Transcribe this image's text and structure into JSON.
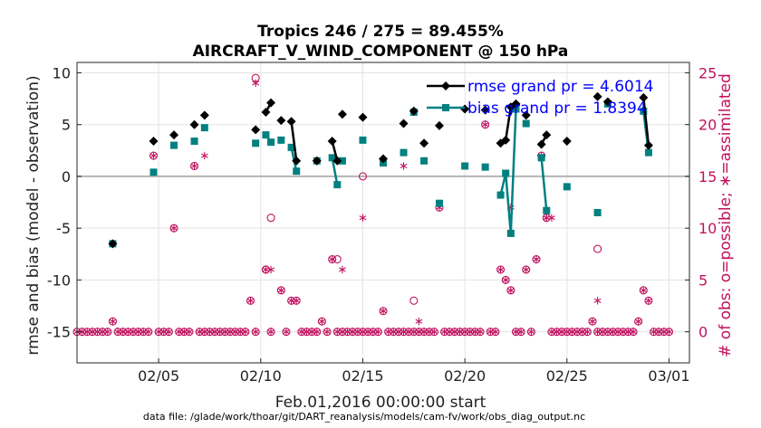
{
  "chart_data": {
    "type": "line",
    "title_line1": "Tropics 246 / 275 = 89.455%",
    "title_line2": "AIRCRAFT_V_WIND_COMPONENT @ 150 hPa",
    "ylabel_left": "rmse and bias (model - observation)",
    "ylabel_right": "# of obs: o=possible; ∗=assimilated",
    "xlabel": "Feb.01,2016 00:00:00 start",
    "footnote": "data file: /glade/work/thoar/git/DART_reanalysis/models/cam-fv/work/obs_diag_output.nc",
    "x_range_days": [
      1,
      31
    ],
    "y_left_range": [
      -18,
      11
    ],
    "y_right_range": [
      -3,
      26
    ],
    "x_ticks": [
      {
        "day": 5,
        "label": "02/05"
      },
      {
        "day": 10,
        "label": "02/10"
      },
      {
        "day": 15,
        "label": "02/15"
      },
      {
        "day": 20,
        "label": "02/20"
      },
      {
        "day": 25,
        "label": "02/25"
      },
      {
        "day": 30,
        "label": "03/01"
      }
    ],
    "y_left_ticks": [
      {
        "v": 10,
        "label": "10"
      },
      {
        "v": 5,
        "label": "5"
      },
      {
        "v": 0,
        "label": "0"
      },
      {
        "v": -5,
        "label": "-5"
      },
      {
        "v": -10,
        "label": "-10"
      },
      {
        "v": -15,
        "label": "-15"
      }
    ],
    "y_right_ticks": [
      {
        "v": 0,
        "label": "0"
      },
      {
        "v": 5,
        "label": "5"
      },
      {
        "v": 10,
        "label": "10"
      },
      {
        "v": 15,
        "label": "15"
      },
      {
        "v": 20,
        "label": "20"
      },
      {
        "v": 25,
        "label": "25"
      }
    ],
    "legend": [
      "rmse grand pr = 4.6014",
      "bias grand pr = 1.8394"
    ],
    "colors": {
      "rmse": "#000000",
      "bias": "#008080",
      "obs": "#c0115f",
      "zero_line": "#b4b4b4",
      "legend_text": "#0000ff"
    },
    "series": [
      {
        "name": "rmse",
        "segments": [
          [
            [
              2.75,
              -6.5
            ]
          ],
          [
            [
              4.75,
              3.4
            ]
          ],
          [
            [
              5.75,
              4.0
            ]
          ],
          [
            [
              6.75,
              5.0
            ]
          ],
          [
            [
              7.25,
              5.9
            ]
          ],
          [
            [
              9.75,
              4.5
            ]
          ],
          [
            [
              10.25,
              6.2
            ],
            [
              10.5,
              7.1
            ]
          ],
          [
            [
              11.0,
              5.4
            ]
          ],
          [
            [
              11.5,
              5.3
            ],
            [
              11.75,
              1.5
            ]
          ],
          [
            [
              12.75,
              1.5
            ]
          ],
          [
            [
              13.5,
              3.4
            ],
            [
              13.75,
              1.5
            ]
          ],
          [
            [
              14.0,
              6.0
            ]
          ],
          [
            [
              15.0,
              5.7
            ]
          ],
          [
            [
              16.0,
              1.7
            ]
          ],
          [
            [
              17.0,
              5.1
            ]
          ],
          [
            [
              17.5,
              6.3
            ]
          ],
          [
            [
              18.0,
              3.2
            ]
          ],
          [
            [
              18.75,
              4.9
            ]
          ],
          [
            [
              20.0,
              6.5
            ]
          ],
          [
            [
              21.0,
              6.4
            ]
          ],
          [
            [
              21.75,
              3.2
            ],
            [
              22.0,
              3.5
            ],
            [
              22.25,
              6.7
            ],
            [
              22.5,
              7.0
            ]
          ],
          [
            [
              23.0,
              5.9
            ]
          ],
          [
            [
              23.75,
              3.1
            ],
            [
              24.0,
              4.0
            ]
          ],
          [
            [
              25.0,
              3.4
            ]
          ],
          [
            [
              26.5,
              7.7
            ]
          ],
          [
            [
              27.0,
              7.2
            ]
          ],
          [
            [
              28.75,
              7.6
            ],
            [
              29.0,
              3.0
            ]
          ]
        ]
      },
      {
        "name": "bias",
        "segments": [
          [
            [
              2.75,
              -6.5
            ]
          ],
          [
            [
              4.75,
              0.4
            ]
          ],
          [
            [
              5.75,
              3.0
            ]
          ],
          [
            [
              6.75,
              3.4
            ]
          ],
          [
            [
              7.25,
              4.7
            ]
          ],
          [
            [
              9.75,
              3.2
            ]
          ],
          [
            [
              10.25,
              4.0
            ],
            [
              10.5,
              3.3
            ]
          ],
          [
            [
              11.0,
              3.5
            ]
          ],
          [
            [
              11.5,
              2.8
            ],
            [
              11.75,
              0.5
            ]
          ],
          [
            [
              12.75,
              1.5
            ]
          ],
          [
            [
              13.5,
              1.8
            ],
            [
              13.75,
              -0.8
            ]
          ],
          [
            [
              14.0,
              1.5
            ]
          ],
          [
            [
              15.0,
              3.5
            ]
          ],
          [
            [
              16.0,
              1.3
            ]
          ],
          [
            [
              17.0,
              2.3
            ]
          ],
          [
            [
              17.5,
              6.2
            ]
          ],
          [
            [
              18.0,
              1.5
            ]
          ],
          [
            [
              18.75,
              -2.6
            ]
          ],
          [
            [
              20.0,
              1.0
            ]
          ],
          [
            [
              21.0,
              0.9
            ]
          ],
          [
            [
              21.75,
              -1.8
            ],
            [
              22.0,
              0.3
            ],
            [
              22.25,
              -5.5
            ],
            [
              22.5,
              6.5
            ]
          ],
          [
            [
              23.0,
              5.1
            ]
          ],
          [
            [
              23.75,
              1.8
            ],
            [
              24.0,
              -3.3
            ]
          ],
          [
            [
              25.0,
              -1.0
            ]
          ],
          [
            [
              26.5,
              -3.5
            ]
          ],
          [
            [
              27.0,
              7.0
            ]
          ],
          [
            [
              28.75,
              6.3
            ],
            [
              29.0,
              2.3
            ]
          ]
        ]
      },
      {
        "name": "obs_possible_and_assimilated",
        "points": [
          [
            1.0,
            0
          ],
          [
            1.25,
            0
          ],
          [
            1.5,
            0
          ],
          [
            1.75,
            0
          ],
          [
            2.0,
            0
          ],
          [
            2.25,
            0
          ],
          [
            2.5,
            0
          ],
          [
            2.75,
            1
          ],
          [
            3.0,
            0
          ],
          [
            3.25,
            0
          ],
          [
            3.5,
            0
          ],
          [
            3.75,
            0
          ],
          [
            4.0,
            0
          ],
          [
            4.25,
            0
          ],
          [
            4.5,
            0
          ],
          [
            4.75,
            17
          ],
          [
            5.0,
            0
          ],
          [
            5.25,
            0
          ],
          [
            5.5,
            0
          ],
          [
            5.75,
            10
          ],
          [
            6.0,
            0
          ],
          [
            6.25,
            0
          ],
          [
            6.5,
            0
          ],
          [
            6.75,
            16
          ],
          [
            7.0,
            0
          ],
          [
            7.25,
            0
          ],
          [
            7.5,
            0
          ],
          [
            7.75,
            0
          ],
          [
            8.0,
            0
          ],
          [
            8.25,
            0
          ],
          [
            8.5,
            0
          ],
          [
            8.75,
            0
          ],
          [
            9.0,
            0
          ],
          [
            9.25,
            0
          ],
          [
            9.5,
            3
          ],
          [
            9.75,
            0
          ],
          [
            10.25,
            6
          ],
          [
            10.5,
            0
          ],
          [
            11.0,
            4
          ],
          [
            11.25,
            0
          ],
          [
            11.5,
            3
          ],
          [
            11.75,
            3
          ],
          [
            12.0,
            0
          ],
          [
            12.25,
            0
          ],
          [
            12.5,
            0
          ],
          [
            12.75,
            0
          ],
          [
            13.0,
            1
          ],
          [
            13.25,
            0
          ],
          [
            13.5,
            7
          ],
          [
            13.75,
            0
          ],
          [
            14.0,
            0
          ],
          [
            14.25,
            0
          ],
          [
            14.5,
            0
          ],
          [
            14.75,
            0
          ],
          [
            15.0,
            0
          ],
          [
            15.25,
            0
          ],
          [
            15.5,
            0
          ],
          [
            15.75,
            0
          ],
          [
            16.0,
            2
          ],
          [
            16.25,
            0
          ],
          [
            16.5,
            0
          ],
          [
            16.75,
            0
          ],
          [
            17.0,
            0
          ],
          [
            17.25,
            0
          ],
          [
            17.5,
            0
          ],
          [
            17.75,
            0
          ],
          [
            18.0,
            0
          ],
          [
            18.25,
            0
          ],
          [
            18.5,
            0
          ],
          [
            18.75,
            12
          ],
          [
            19.0,
            0
          ],
          [
            19.25,
            0
          ],
          [
            19.5,
            0
          ],
          [
            19.75,
            0
          ],
          [
            20.0,
            0
          ],
          [
            20.25,
            0
          ],
          [
            20.5,
            0
          ],
          [
            20.75,
            0
          ],
          [
            21.0,
            20
          ],
          [
            21.25,
            0
          ],
          [
            21.5,
            0
          ],
          [
            21.75,
            6
          ],
          [
            22.0,
            5
          ],
          [
            22.25,
            4
          ],
          [
            22.5,
            0
          ],
          [
            22.75,
            0
          ],
          [
            23.0,
            6
          ],
          [
            23.25,
            0
          ],
          [
            23.5,
            7
          ],
          [
            23.75,
            17
          ],
          [
            24.0,
            11
          ],
          [
            24.25,
            0
          ],
          [
            24.5,
            0
          ],
          [
            24.75,
            0
          ],
          [
            25.0,
            0
          ],
          [
            25.25,
            0
          ],
          [
            25.5,
            0
          ],
          [
            25.75,
            0
          ],
          [
            26.0,
            0
          ],
          [
            26.25,
            1
          ],
          [
            26.5,
            0
          ],
          [
            26.75,
            0
          ],
          [
            27.0,
            0
          ],
          [
            27.25,
            0
          ],
          [
            27.5,
            0
          ],
          [
            27.75,
            0
          ],
          [
            28.0,
            0
          ],
          [
            28.25,
            0
          ],
          [
            28.5,
            1
          ],
          [
            28.75,
            4
          ],
          [
            29.0,
            3
          ],
          [
            29.25,
            0
          ],
          [
            29.5,
            0
          ],
          [
            29.75,
            0
          ],
          [
            30.0,
            0
          ]
        ]
      },
      {
        "name": "obs_possible_only",
        "points": [
          [
            9.75,
            24.5
          ],
          [
            10.25,
            6
          ],
          [
            10.5,
            11
          ],
          [
            13.75,
            7
          ],
          [
            15.0,
            15
          ],
          [
            17.5,
            3
          ],
          [
            26.5,
            8
          ]
        ]
      },
      {
        "name": "obs_assimilated_only",
        "points": [
          [
            9.75,
            24
          ],
          [
            10.5,
            6
          ],
          [
            14.0,
            6
          ],
          [
            15.0,
            11
          ],
          [
            17.0,
            16
          ],
          [
            17.75,
            1
          ],
          [
            22.25,
            12
          ],
          [
            24.0,
            11
          ],
          [
            24.25,
            11
          ],
          [
            26.5,
            3
          ],
          [
            7.25,
            17
          ]
        ]
      }
    ]
  }
}
